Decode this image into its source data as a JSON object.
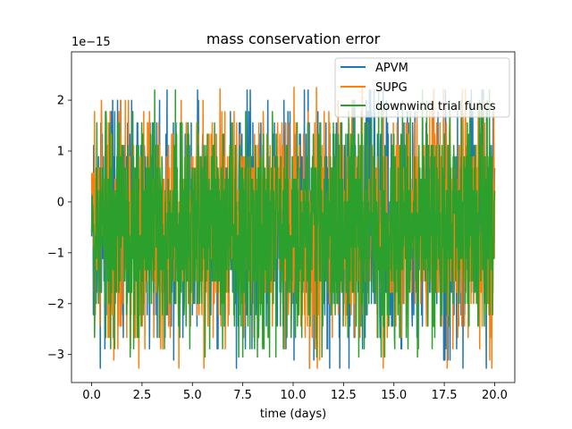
{
  "chart_data": {
    "type": "line",
    "title": "mass conservation error",
    "xlabel": "time (days)",
    "ylabel": "",
    "y_scale_label": "1e−15",
    "xlim": [
      -1.0,
      21.0
    ],
    "ylim": [
      -3.55,
      2.95
    ],
    "x_ticks": [
      0.0,
      2.5,
      5.0,
      7.5,
      10.0,
      12.5,
      15.0,
      17.5,
      20.0
    ],
    "x_tick_labels": [
      "0.0",
      "2.5",
      "5.0",
      "7.5",
      "10.0",
      "12.5",
      "15.0",
      "17.5",
      "20.0"
    ],
    "y_ticks": [
      -3,
      -2,
      -1,
      0,
      1,
      2
    ],
    "y_tick_labels": [
      "−3",
      "−2",
      "−1",
      "0",
      "1",
      "2"
    ],
    "legend_position": "top-right",
    "series": [
      {
        "name": "APVM",
        "color": "#1f77b4",
        "x_range": [
          0,
          20
        ],
        "y_min": -3.27,
        "y_max": 2.2
      },
      {
        "name": "SUPG",
        "color": "#ff7f0e",
        "x_range": [
          0,
          20
        ],
        "y_min": -3.27,
        "y_max": 2.25
      },
      {
        "name": "downwind trial funcs",
        "color": "#2ca02c",
        "x_range": [
          0,
          20
        ],
        "y_min": -3.05,
        "y_max": 2.2
      }
    ]
  }
}
